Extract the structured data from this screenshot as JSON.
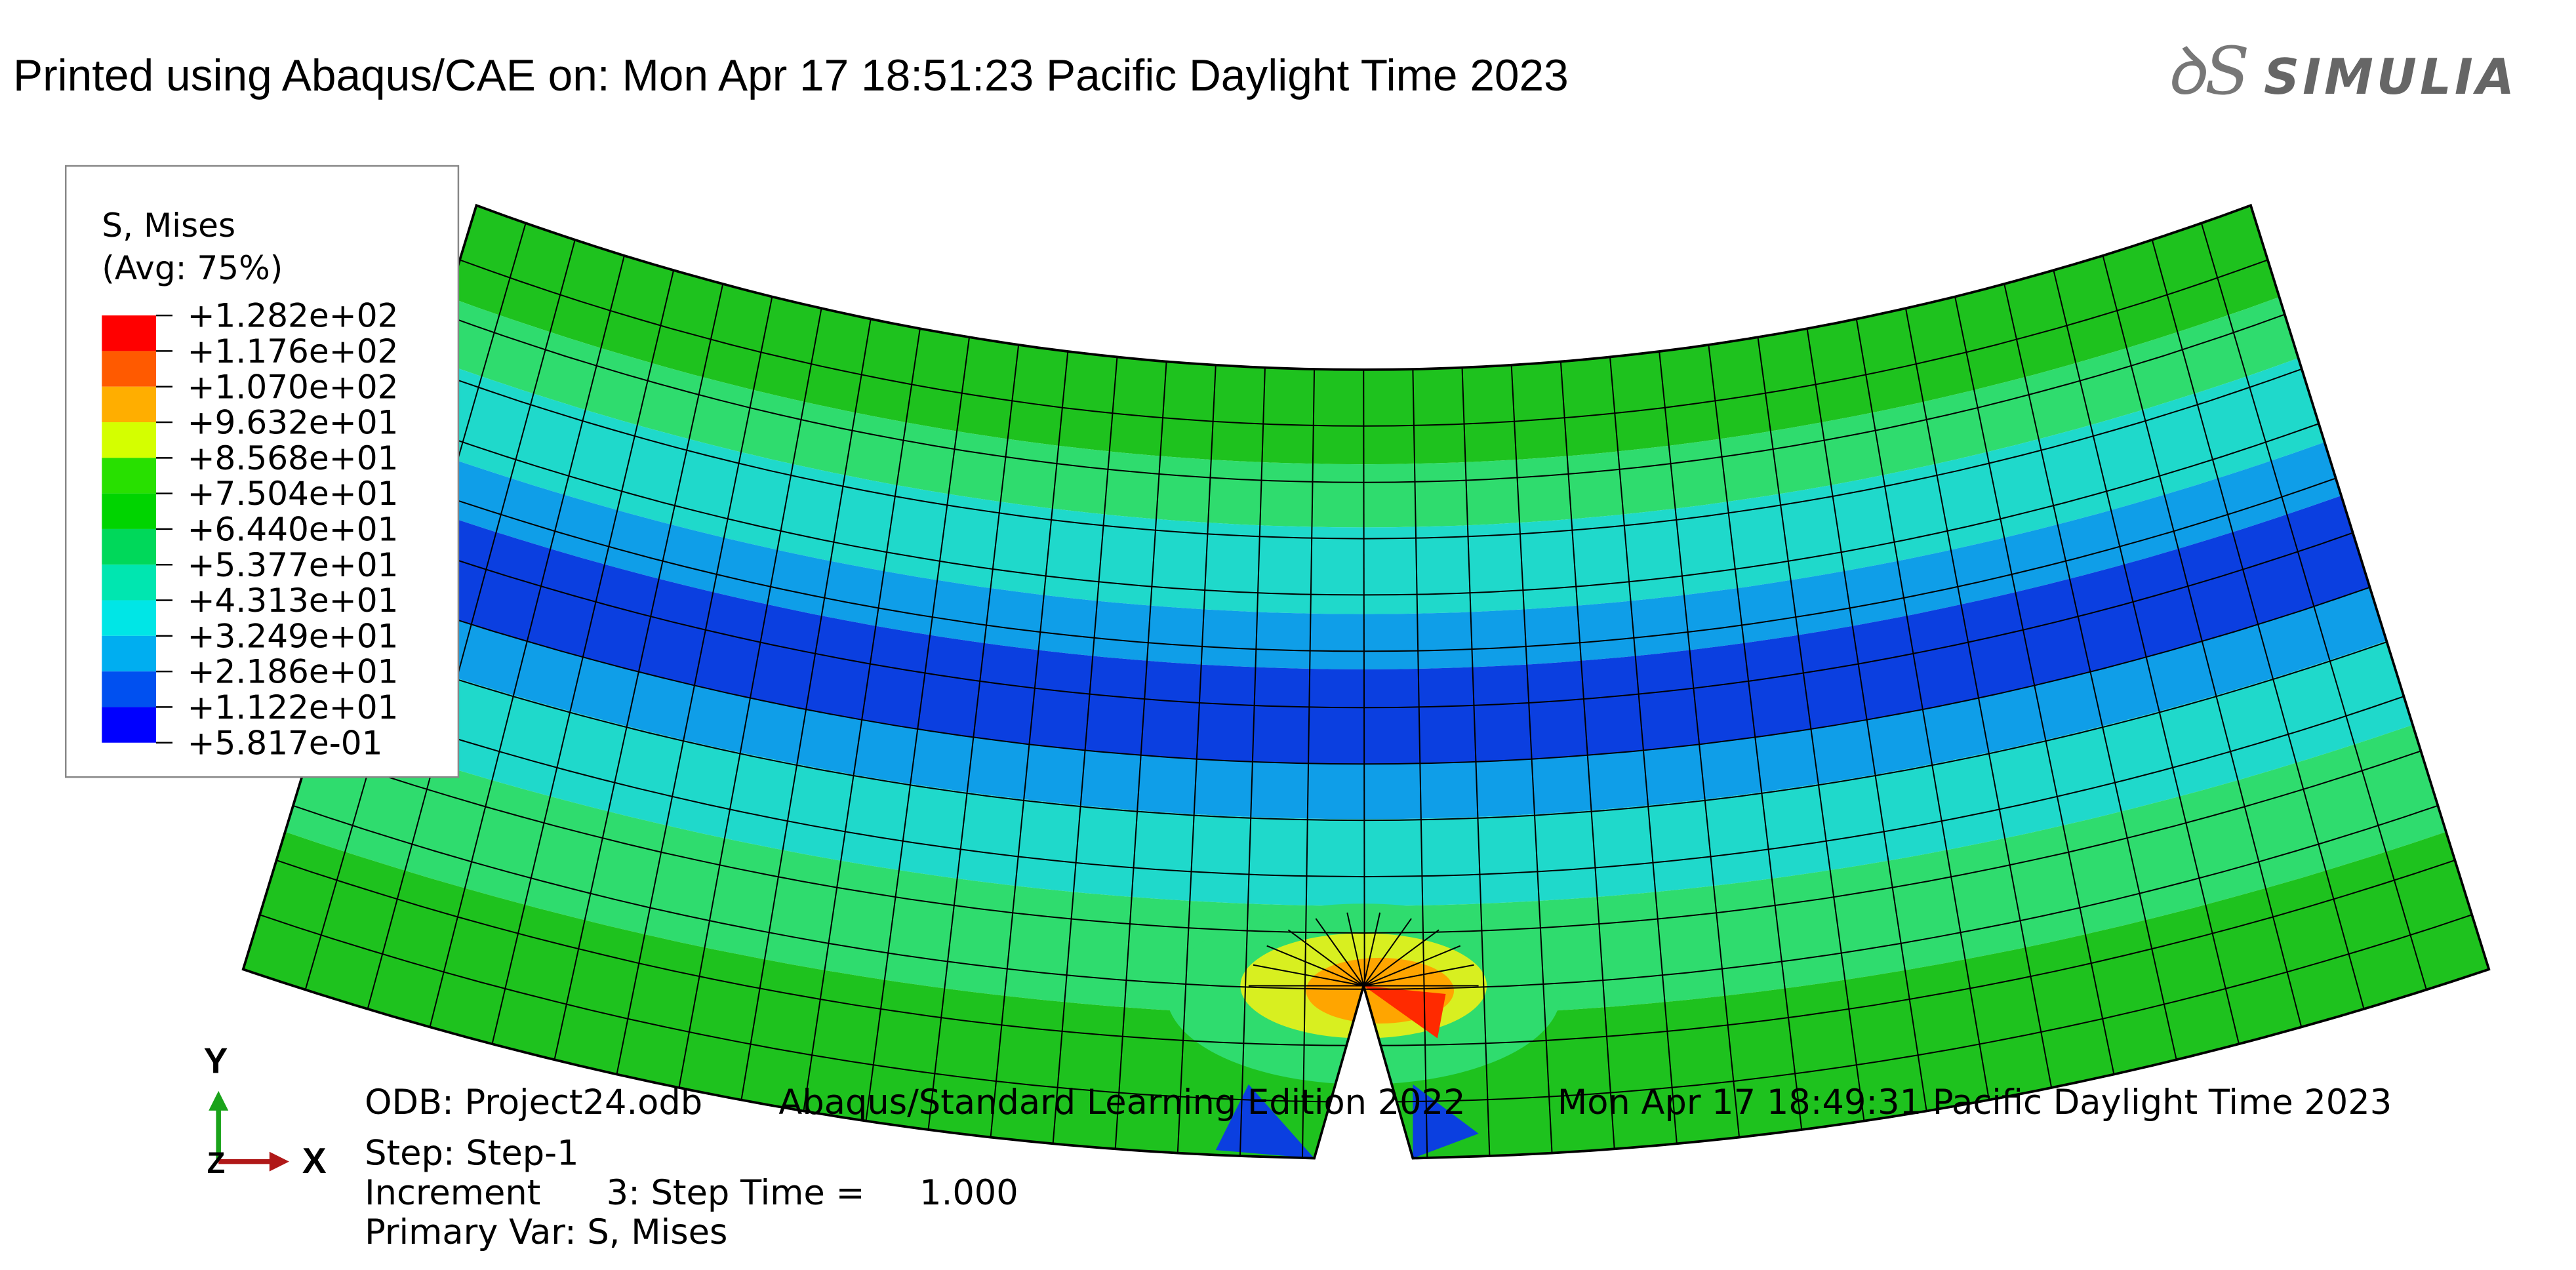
{
  "header": {
    "title": "Printed using Abaqus/CAE on: Mon Apr 17 18:51:23 Pacific Daylight Time 2023",
    "logo": "SIMULIA"
  },
  "legend": {
    "title": "S, Mises",
    "subtitle": "(Avg: 75%)",
    "labels": [
      "+1.282e+02",
      "+1.176e+02",
      "+1.070e+02",
      "+9.632e+01",
      "+8.568e+01",
      "+7.504e+01",
      "+6.440e+01",
      "+5.377e+01",
      "+4.313e+01",
      "+3.249e+01",
      "+2.186e+01",
      "+1.122e+01",
      "+5.817e-01"
    ]
  },
  "triad": {
    "y": "Y",
    "x": "X",
    "z": "Z"
  },
  "info": {
    "odb": "ODB: Project24.odb",
    "edition": "Abaqus/Standard Learning Edition 2022",
    "date": "Mon Apr 17 18:49:31 Pacific Daylight Time 2023",
    "step": "Step: Step-1",
    "increment": "Increment      3: Step Time =     1.000",
    "primary": "Primary Var: S, Mises"
  }
}
